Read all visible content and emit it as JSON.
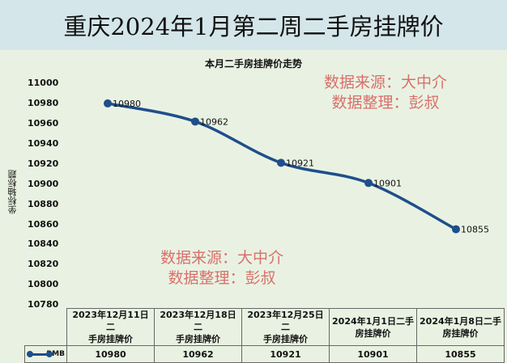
{
  "header": {
    "title": "重庆2024年1月第二周二手房挂牌价"
  },
  "watermarks": [
    {
      "line1": "数据来源：大中介",
      "line2": "数据整理：彭叔"
    },
    {
      "line1": "数据来源：大中介",
      "line2": "数据整理：彭叔"
    }
  ],
  "chart_data": {
    "type": "line",
    "title": "本月二手房挂牌价走势",
    "xlabel": "",
    "ylabel": "坐标轴标题",
    "ylim": [
      10780,
      11000
    ],
    "yticks": [
      11000,
      10980,
      10960,
      10940,
      10920,
      10900,
      10880,
      10860,
      10840,
      10820,
      10800,
      10780
    ],
    "categories": [
      "2023年12月11日二手房挂牌价",
      "2023年12月18日二手房挂牌价",
      "2023年12月25日二手房挂牌价",
      "2024年1月1日二手房挂牌价",
      "2024年1月8日二手房挂牌价"
    ],
    "series": [
      {
        "name": "RMB",
        "values": [
          10980,
          10962,
          10921,
          10901,
          10855
        ],
        "color": "#1f4e8c"
      }
    ],
    "grid": false,
    "legend_position": "data-table",
    "smooth": true
  },
  "table": {
    "categories": [
      {
        "line1": "2023年12月11日二",
        "line2": "手房挂牌价"
      },
      {
        "line1": "2023年12月18日二",
        "line2": "手房挂牌价"
      },
      {
        "line1": "2023年12月25日二",
        "line2": "手房挂牌价"
      },
      {
        "line1": "2024年1月1日二手",
        "line2": "房挂牌价"
      },
      {
        "line1": "2024年1月8日二手",
        "line2": "房挂牌价"
      }
    ],
    "legend_label": "RMB",
    "values": [
      "10980",
      "10962",
      "10921",
      "10901",
      "10855"
    ]
  },
  "labels": [
    "10980",
    "10962",
    "10921",
    "10901",
    "10855"
  ]
}
